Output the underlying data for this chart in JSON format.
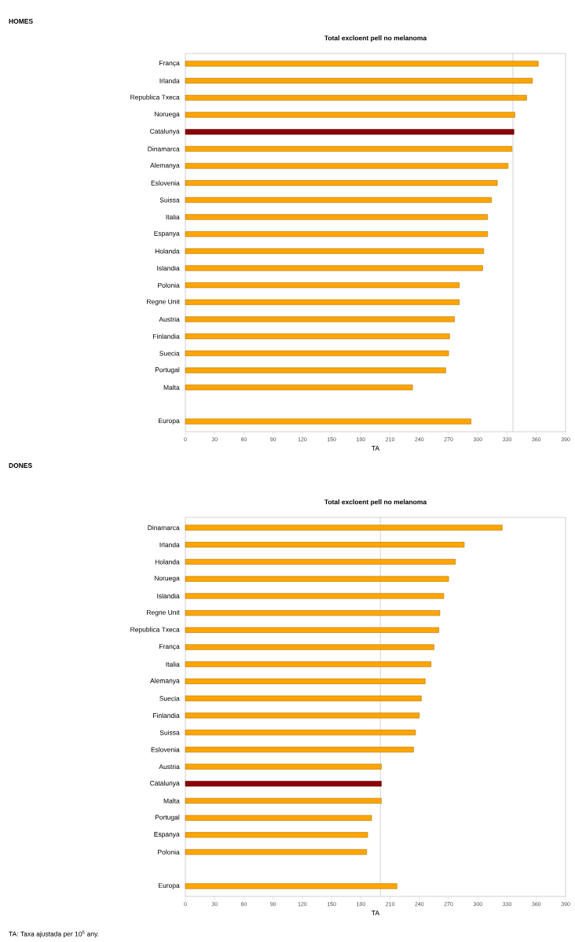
{
  "chart_data": [
    {
      "type": "bar",
      "orientation": "horizontal",
      "title": "Total excloent pell no melanoma",
      "xlabel": "TA",
      "annotations": [
        "HOMES"
      ],
      "categories": [
        "França",
        "Irlanda",
        "Republica Txeca",
        "Noruega",
        "Catalunya",
        "Dinamarca",
        "Alemanya",
        "Eslovenia",
        "Suissa",
        "Italia",
        "Espanya",
        "Holanda",
        "Islandia",
        "Polonia",
        "Regne Unit",
        "Austria",
        "Finlandia",
        "Suecia",
        "Portugal",
        "Malta",
        null,
        "Europa"
      ],
      "values": [
        362,
        356,
        350,
        338,
        337,
        335,
        331,
        320,
        314,
        310,
        310,
        306,
        305,
        281,
        281,
        276,
        271,
        270,
        267,
        233,
        null,
        293
      ],
      "colors": [
        "#ffa500",
        "#ffa500",
        "#ffa500",
        "#ffa500",
        "#8b0000",
        "#ffa500",
        "#ffa500",
        "#ffa500",
        "#ffa500",
        "#ffa500",
        "#ffa500",
        "#ffa500",
        "#ffa500",
        "#ffa500",
        "#ffa500",
        "#ffa500",
        "#ffa500",
        "#ffa500",
        "#ffa500",
        "#ffa500",
        "#ffa500",
        "#ffa500"
      ],
      "xlim": [
        0,
        390
      ],
      "xticks": [
        0,
        30,
        60,
        90,
        120,
        150,
        180,
        210,
        240,
        270,
        300,
        330,
        360,
        390
      ],
      "ref_lines": [
        {
          "axis": "x",
          "value": 336,
          "label": null,
          "color": "#c8c8c8"
        }
      ]
    },
    {
      "type": "bar",
      "orientation": "horizontal",
      "title": "Total excloent pell no melanoma",
      "xlabel": "TA",
      "annotations": [
        "DONES",
        "TA: Taxa ajustada per 10$^{5}$ any."
      ],
      "categories": [
        "Dinamarca",
        "Irlanda",
        "Holanda",
        "Noruega",
        "Islandia",
        "Regne Unit",
        "Republica Txeca",
        "França",
        "Italia",
        "Alemanya",
        "Suecia",
        "Finlandia",
        "Suissa",
        "Eslovenia",
        "Austria",
        "Catalunya",
        "Malta",
        "Portugal",
        "Espanya",
        "Polonia",
        null,
        "Europa"
      ],
      "values": [
        325,
        286,
        277,
        270,
        265,
        261,
        260,
        255,
        252,
        246,
        242,
        240,
        236,
        234,
        201,
        201,
        201,
        191,
        187,
        186,
        null,
        217
      ],
      "colors": [
        "#ffa500",
        "#ffa500",
        "#ffa500",
        "#ffa500",
        "#ffa500",
        "#ffa500",
        "#ffa500",
        "#ffa500",
        "#ffa500",
        "#ffa500",
        "#ffa500",
        "#ffa500",
        "#ffa500",
        "#ffa500",
        "#ffa500",
        "#8b0000",
        "#ffa500",
        "#ffa500",
        "#ffa500",
        "#ffa500",
        "#ffa500",
        "#ffa500"
      ],
      "xlim": [
        0,
        390
      ],
      "xticks": [
        0,
        30,
        60,
        90,
        120,
        150,
        180,
        210,
        240,
        270,
        300,
        330,
        360,
        390
      ],
      "ref_lines": [
        {
          "axis": "x",
          "value": 200,
          "label": null,
          "color": "#c8c8c8"
        }
      ]
    }
  ]
}
